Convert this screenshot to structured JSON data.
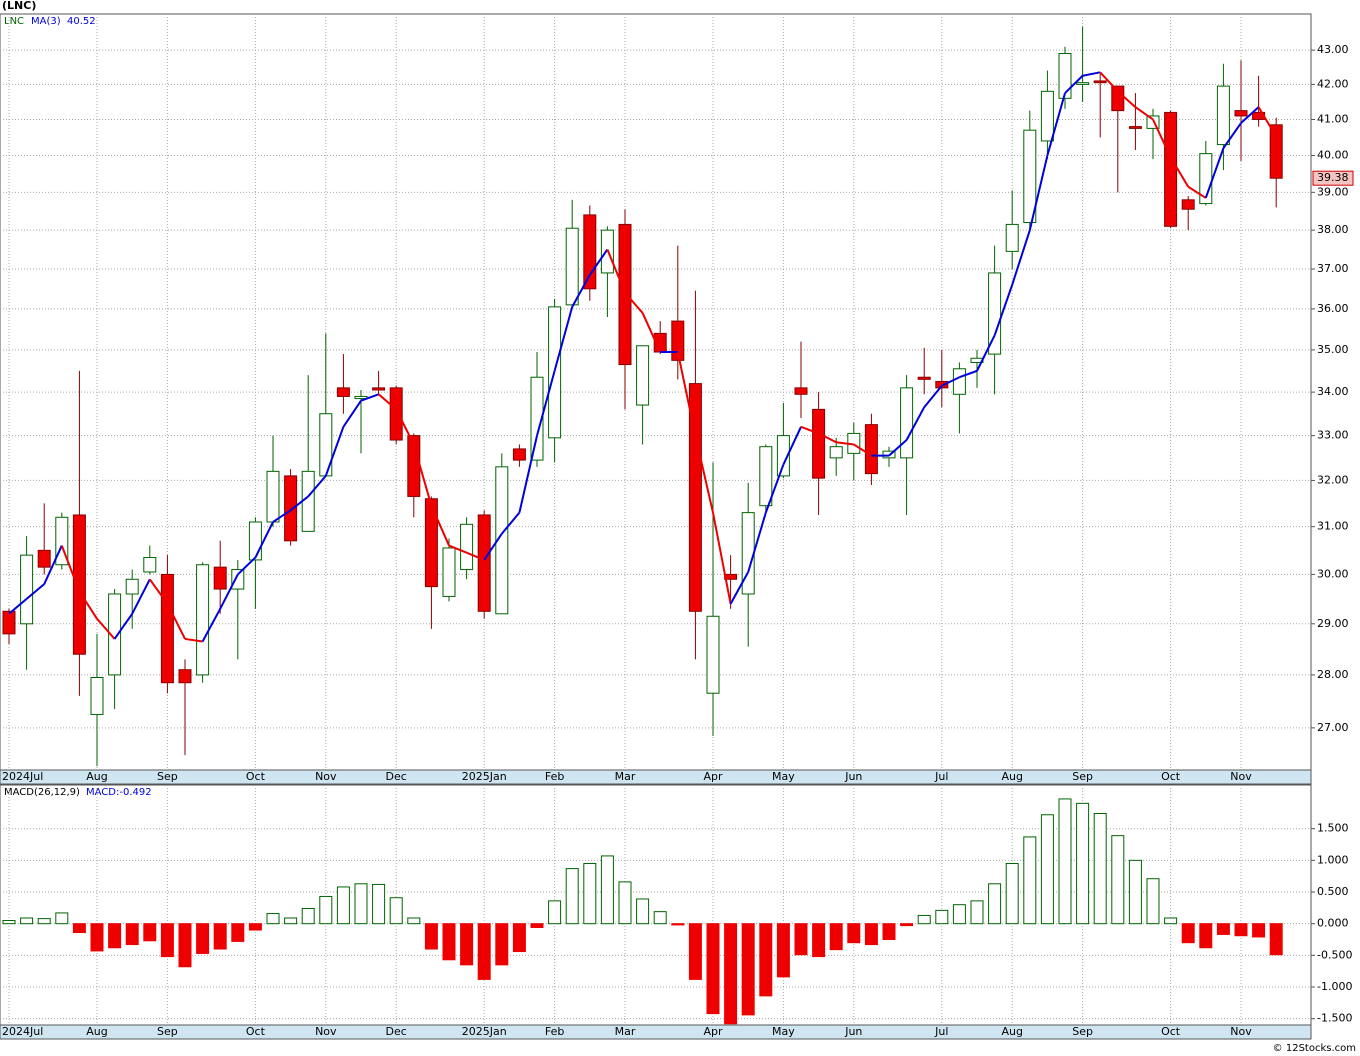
{
  "chart_data": [
    {
      "type": "candlestick",
      "title": "(LNC)",
      "symbol": "LNC",
      "log_scale": true,
      "grid": true,
      "up_color": "#006400",
      "down_color": "#ee0000",
      "categories": [
        "2024Jul",
        null,
        null,
        null,
        null,
        "Aug",
        null,
        null,
        null,
        "Sep",
        null,
        null,
        null,
        null,
        "Oct",
        null,
        null,
        null,
        "Nov",
        null,
        null,
        null,
        "Dec",
        null,
        null,
        null,
        null,
        "2025Jan",
        null,
        null,
        null,
        "Feb",
        null,
        null,
        null,
        "Mar",
        null,
        null,
        null,
        null,
        "Apr",
        null,
        null,
        null,
        "May",
        null,
        null,
        null,
        "Jun",
        null,
        null,
        null,
        null,
        "Jul",
        null,
        null,
        null,
        "Aug",
        null,
        null,
        null,
        "Sep",
        null,
        null,
        null,
        null,
        "Oct",
        null,
        null,
        null,
        "Nov",
        null,
        null
      ],
      "open": [
        29.25,
        29.0,
        30.5,
        30.2,
        31.25,
        27.25,
        28.0,
        29.6,
        30.05,
        30.0,
        28.1,
        28.0,
        30.15,
        29.7,
        30.3,
        31.1,
        32.1,
        30.9,
        32.1,
        34.1,
        33.85,
        34.1,
        34.1,
        33.0,
        31.6,
        29.55,
        30.1,
        31.25,
        29.2,
        32.7,
        32.45,
        32.95,
        36.1,
        38.4,
        36.9,
        38.15,
        33.7,
        35.4,
        35.7,
        34.2,
        27.65,
        30.0,
        29.6,
        31.45,
        32.1,
        34.1,
        33.6,
        32.5,
        32.6,
        33.25,
        32.5,
        32.5,
        34.35,
        34.25,
        33.95,
        34.7,
        34.9,
        37.45,
        38.2,
        40.4,
        41.6,
        42.0,
        42.1,
        41.95,
        40.8,
        40.75,
        41.2,
        38.8,
        38.7,
        40.3,
        41.25,
        41.2,
        40.85
      ],
      "high": [
        29.3,
        30.8,
        31.5,
        31.3,
        34.5,
        28.8,
        29.7,
        30.1,
        30.6,
        30.4,
        28.3,
        30.25,
        30.7,
        30.3,
        31.2,
        33.0,
        32.25,
        34.4,
        35.4,
        34.9,
        34.05,
        34.5,
        34.15,
        33.05,
        31.65,
        30.75,
        31.2,
        31.35,
        32.6,
        32.8,
        34.95,
        36.25,
        38.8,
        38.65,
        38.1,
        38.55,
        35.1,
        35.7,
        37.6,
        36.45,
        32.4,
        30.4,
        31.95,
        32.8,
        33.75,
        35.2,
        34.0,
        32.95,
        33.3,
        33.5,
        32.75,
        34.4,
        35.05,
        35.0,
        34.7,
        35.0,
        37.6,
        39.05,
        41.25,
        42.4,
        43.1,
        43.7,
        42.3,
        41.95,
        41.75,
        41.3,
        41.25,
        38.9,
        40.4,
        42.6,
        42.7,
        42.25,
        41.05
      ],
      "low": [
        28.6,
        28.1,
        30.0,
        30.1,
        27.6,
        26.3,
        27.35,
        28.9,
        30.0,
        27.65,
        26.5,
        27.85,
        29.2,
        28.3,
        29.3,
        31.0,
        30.6,
        30.9,
        32.1,
        33.5,
        32.6,
        33.95,
        32.8,
        31.2,
        28.9,
        29.45,
        29.9,
        29.1,
        29.2,
        32.3,
        32.3,
        32.4,
        36.05,
        36.2,
        35.8,
        33.6,
        32.8,
        34.9,
        34.3,
        28.3,
        26.85,
        29.3,
        28.55,
        31.35,
        32.05,
        33.4,
        31.25,
        32.1,
        32.0,
        31.9,
        32.3,
        31.25,
        33.95,
        33.65,
        33.05,
        34.1,
        33.95,
        37.0,
        37.95,
        39.9,
        41.3,
        41.5,
        40.5,
        39.0,
        40.15,
        39.9,
        38.05,
        38.0,
        38.65,
        39.6,
        39.85,
        40.8,
        38.6
      ],
      "close": [
        28.8,
        30.4,
        30.15,
        31.2,
        28.4,
        27.95,
        29.6,
        29.9,
        30.35,
        27.85,
        27.85,
        30.2,
        29.7,
        30.1,
        31.1,
        32.2,
        30.7,
        32.2,
        33.5,
        33.9,
        33.9,
        34.05,
        32.9,
        31.65,
        29.75,
        30.55,
        31.05,
        29.25,
        32.3,
        32.45,
        34.35,
        36.05,
        38.05,
        36.5,
        38.0,
        34.65,
        35.1,
        34.95,
        34.75,
        29.25,
        29.15,
        29.9,
        31.3,
        32.75,
        33.0,
        33.95,
        32.05,
        32.75,
        33.05,
        32.15,
        32.65,
        34.1,
        34.3,
        34.1,
        34.55,
        34.8,
        36.9,
        38.15,
        40.7,
        41.8,
        42.9,
        42.05,
        42.05,
        41.25,
        40.75,
        41.1,
        38.1,
        38.55,
        40.05,
        41.95,
        41.1,
        41.0,
        39.38
      ],
      "series": [
        {
          "name": "MA(3)",
          "up_color": "#0000dd",
          "down_color": "#ee0000",
          "values": [
            29.2,
            29.5,
            29.8,
            30.6,
            29.65,
            29.1,
            28.7,
            29.2,
            29.9,
            29.4,
            28.7,
            28.65,
            29.3,
            30.0,
            30.35,
            31.1,
            31.35,
            31.65,
            32.1,
            33.2,
            33.8,
            33.95,
            33.6,
            32.8,
            31.45,
            30.6,
            30.45,
            30.3,
            30.85,
            31.3,
            33.0,
            34.5,
            36.05,
            36.85,
            37.5,
            36.4,
            35.9,
            34.95,
            34.95,
            33.0,
            31.3,
            29.4,
            30.05,
            31.3,
            32.35,
            33.2,
            33.05,
            32.85,
            32.8,
            32.55,
            32.55,
            32.9,
            33.65,
            34.15,
            34.35,
            34.5,
            35.35,
            36.6,
            38.0,
            40.0,
            41.75,
            42.25,
            42.35,
            41.8,
            41.35,
            41.0,
            39.95,
            39.15,
            38.85,
            40.2,
            40.9,
            41.35,
            40.52
          ]
        }
      ],
      "ylim": [
        26.23,
        44.08
      ],
      "yticks": [
        {
          "value": 27,
          "label": "27.00"
        },
        {
          "value": 28,
          "label": "28.00"
        },
        {
          "value": 29,
          "label": "29.00"
        },
        {
          "value": 30,
          "label": "30.00"
        },
        {
          "value": 31,
          "label": "31.00"
        },
        {
          "value": 32,
          "label": "32.00"
        },
        {
          "value": 33,
          "label": "33.00"
        },
        {
          "value": 34,
          "label": "34.00"
        },
        {
          "value": 35,
          "label": "35.00"
        },
        {
          "value": 36,
          "label": "36.00"
        },
        {
          "value": 37,
          "label": "37.00"
        },
        {
          "value": 38,
          "label": "38.00"
        },
        {
          "value": 39,
          "label": "39.00"
        },
        {
          "value": 40,
          "label": "40.00"
        },
        {
          "value": 41,
          "label": "41.00"
        },
        {
          "value": 42,
          "label": "42.00"
        },
        {
          "value": 43,
          "label": "43.00"
        }
      ]
    },
    {
      "type": "bar",
      "title": "MACD(26,12,9)",
      "subtitle": "MACD:-0.492",
      "grid": true,
      "up_color": "#006400",
      "down_color": "#ee0000",
      "categories": [
        "2024Jul",
        null,
        null,
        null,
        null,
        "Aug",
        null,
        null,
        null,
        "Sep",
        null,
        null,
        null,
        null,
        "Oct",
        null,
        null,
        null,
        "Nov",
        null,
        null,
        null,
        "Dec",
        null,
        null,
        null,
        null,
        "2025Jan",
        null,
        null,
        null,
        "Feb",
        null,
        null,
        null,
        "Mar",
        null,
        null,
        null,
        null,
        "Apr",
        null,
        null,
        null,
        "May",
        null,
        null,
        null,
        "Jun",
        null,
        null,
        null,
        null,
        "Jul",
        null,
        null,
        null,
        "Aug",
        null,
        null,
        null,
        "Sep",
        null,
        null,
        null,
        null,
        "Oct",
        null,
        null,
        null,
        "Nov",
        null,
        null
      ],
      "values": [
        0.05,
        0.09,
        0.08,
        0.17,
        -0.14,
        -0.43,
        -0.38,
        -0.33,
        -0.27,
        -0.52,
        -0.68,
        -0.47,
        -0.4,
        -0.28,
        -0.1,
        0.16,
        0.09,
        0.24,
        0.43,
        0.58,
        0.63,
        0.62,
        0.41,
        0.09,
        -0.4,
        -0.57,
        -0.65,
        -0.88,
        -0.65,
        -0.44,
        -0.06,
        0.36,
        0.87,
        0.95,
        1.07,
        0.66,
        0.39,
        0.19,
        -0.02,
        -0.88,
        -1.42,
        -1.58,
        -1.44,
        -1.14,
        -0.84,
        -0.49,
        -0.52,
        -0.41,
        -0.3,
        -0.33,
        -0.25,
        -0.03,
        0.13,
        0.21,
        0.3,
        0.36,
        0.63,
        0.95,
        1.37,
        1.72,
        1.97,
        1.9,
        1.74,
        1.39,
        1.0,
        0.71,
        0.09,
        -0.3,
        -0.38,
        -0.17,
        -0.19,
        -0.21,
        -0.49
      ],
      "ylim": [
        -1.6,
        2.19
      ],
      "yticks": [
        {
          "value": -1.5,
          "label": "-1.500"
        },
        {
          "value": -1,
          "label": "-1.000"
        },
        {
          "value": -0.5,
          "label": "-0.500"
        },
        {
          "value": 0,
          "label": "0.000"
        },
        {
          "value": 0.5,
          "label": "0.500"
        },
        {
          "value": 1,
          "label": "1.000"
        },
        {
          "value": 1.5,
          "label": "1.500"
        }
      ]
    }
  ],
  "footer": "© 12Stocks.com"
}
